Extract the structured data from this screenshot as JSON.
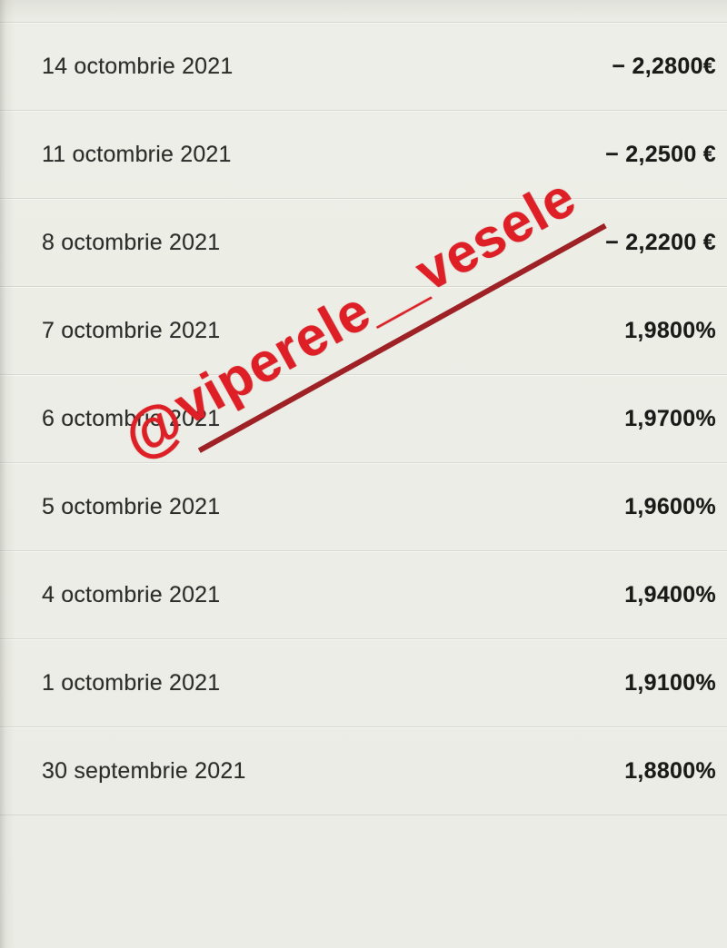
{
  "screen": {
    "background": "#ECEDE6",
    "description": "mobile finance app rate history list, photographed screen"
  },
  "table": {
    "rows": [
      {
        "date": "14 octombrie 2021",
        "value": "− 2,2800€"
      },
      {
        "date": "11 octombrie 2021",
        "value": "− 2,2500 €"
      },
      {
        "date": "8 octombrie 2021",
        "value": "− 2,2200 €"
      },
      {
        "date": "7 octombrie 2021",
        "value": "1,9800%"
      },
      {
        "date": "6 octombrie 2021",
        "value": "1,9700%"
      },
      {
        "date": "5 octombrie 2021",
        "value": "1,9600%"
      },
      {
        "date": "4 octombrie 2021",
        "value": "1,9400%"
      },
      {
        "date": "1 octombrie 2021",
        "value": "1,9100%"
      },
      {
        "date": "30 septembrie 2021",
        "value": "1,8800%"
      }
    ]
  },
  "watermark": {
    "at": "@",
    "handle": "viperele__vesele",
    "full_text": "@viperele__vesele",
    "text_color": "#DE1F26",
    "underline_color": "#9E2126"
  },
  "colors": {
    "date_text": "#2D2D2B",
    "value_text": "#1A1A18",
    "separator": "rgba(105,105,95,0.16)"
  }
}
